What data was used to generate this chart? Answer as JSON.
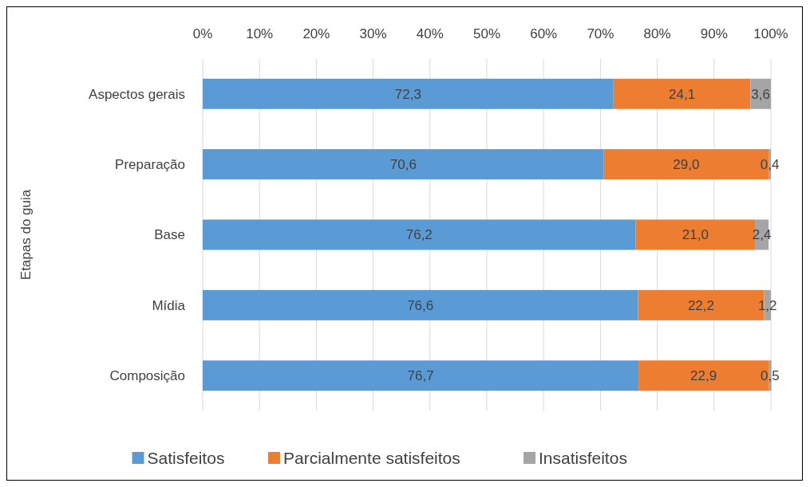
{
  "chart_data": {
    "type": "bar",
    "orientation": "horizontal",
    "stacked": true,
    "ylabel": "Etapas do guia",
    "categories": [
      "Aspectos gerais",
      "Preparação",
      "Base",
      "Mídia",
      "Composição"
    ],
    "series": [
      {
        "name": "Satisfeitos",
        "color": "#5b9bd5",
        "values": [
          72.3,
          70.6,
          76.2,
          76.6,
          76.7
        ],
        "value_labels": [
          "72,3",
          "70,6",
          "76,2",
          "76,6",
          "76,7"
        ]
      },
      {
        "name": "Parcialmente satisfeitos",
        "color": "#ed7d31",
        "values": [
          24.1,
          29.0,
          21.0,
          22.2,
          22.9
        ],
        "value_labels": [
          "24,1",
          "29,0",
          "21,0",
          "22,2",
          "22,9"
        ]
      },
      {
        "name": "Insatisfeitos",
        "color": "#a5a5a5",
        "values": [
          3.6,
          0.4,
          2.4,
          1.2,
          0.5
        ],
        "value_labels": [
          "3,6",
          "0,4",
          "2,4",
          "1,2",
          "0,5"
        ]
      }
    ],
    "xlim": [
      0,
      100
    ],
    "xticks": [
      {
        "value": 0,
        "label": "0%"
      },
      {
        "value": 10,
        "label": "10%"
      },
      {
        "value": 20,
        "label": "20%"
      },
      {
        "value": 30,
        "label": "30%"
      },
      {
        "value": 40,
        "label": "40%"
      },
      {
        "value": 50,
        "label": "50%"
      },
      {
        "value": 60,
        "label": "60%"
      },
      {
        "value": 70,
        "label": "70%"
      },
      {
        "value": 80,
        "label": "80%"
      },
      {
        "value": 90,
        "label": "90%"
      },
      {
        "value": 100,
        "label": "100%"
      }
    ],
    "grid": "x",
    "legend": "bottom"
  }
}
